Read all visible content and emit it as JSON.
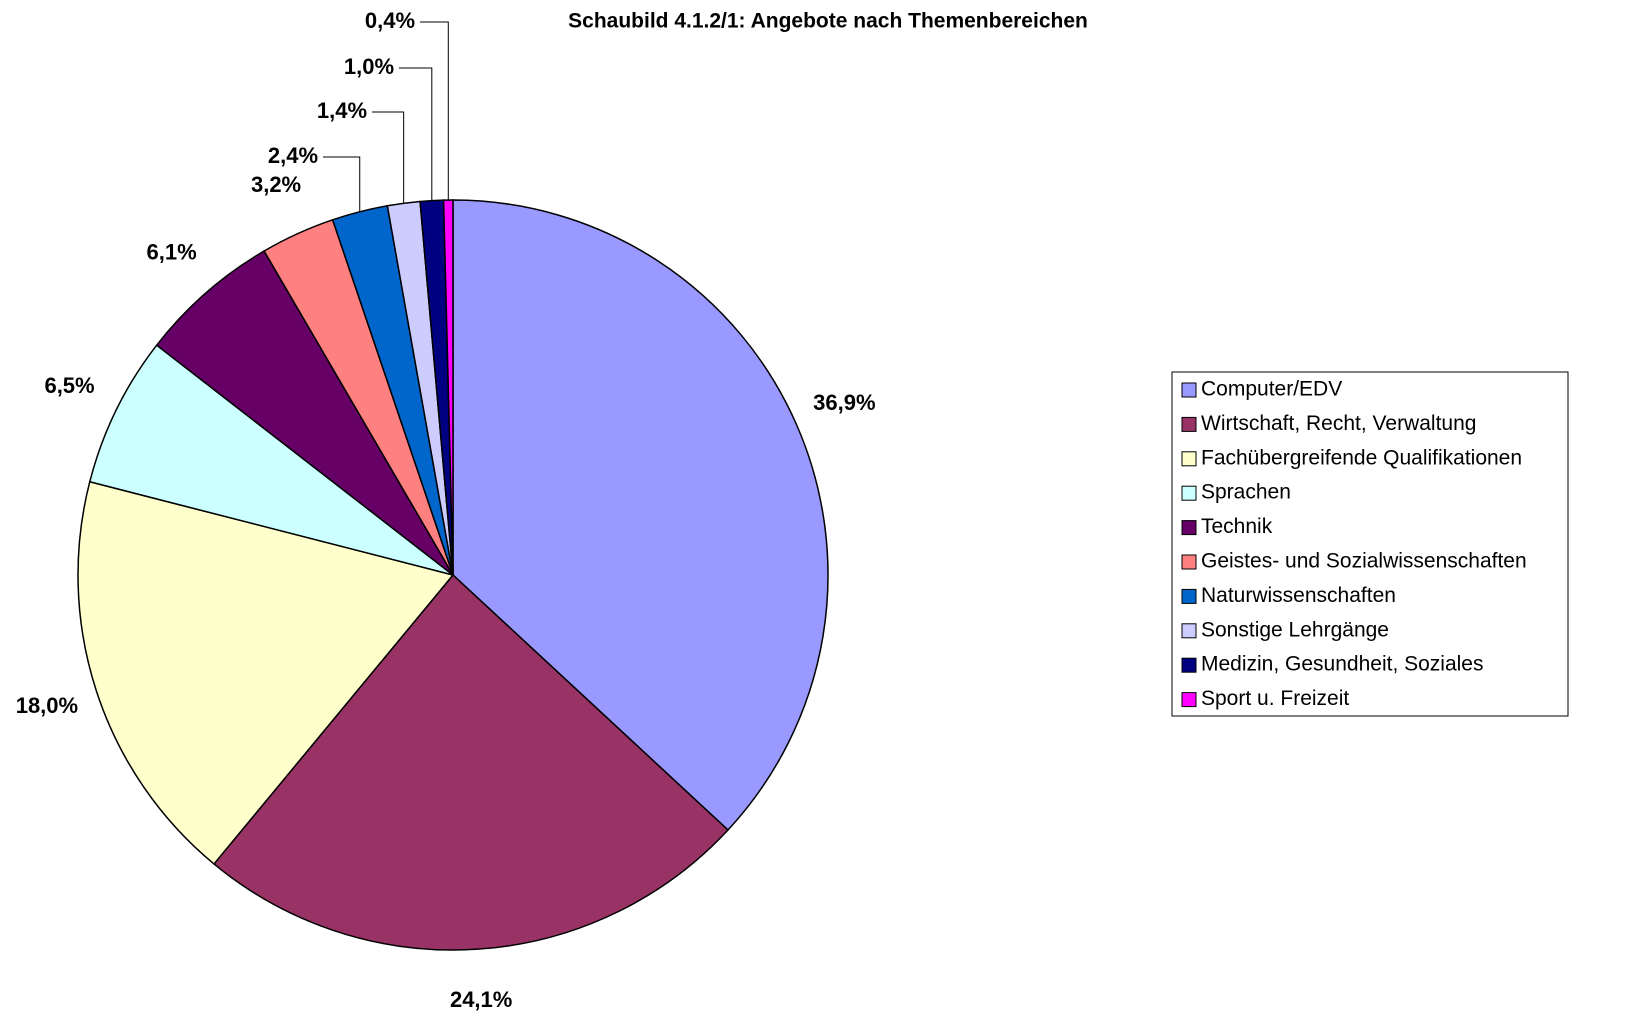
{
  "chart_data": {
    "type": "pie",
    "title": "Schaubild 4.1.2/1: Angebote nach Themenbereichen",
    "categories": [
      "Computer/EDV",
      "Wirtschaft, Recht, Verwaltung",
      "Fachübergreifende Qualifikationen",
      "Sprachen",
      "Technik",
      "Geistes- und Sozialwissenschaften",
      "Naturwissenschaften",
      "Sonstige Lehrgänge",
      "Medizin, Gesundheit, Soziales",
      "Sport u. Freizeit"
    ],
    "values": [
      36.9,
      24.1,
      18.0,
      6.5,
      6.1,
      3.2,
      2.4,
      1.4,
      1.0,
      0.4
    ],
    "value_labels": [
      "36,9%",
      "24,1%",
      "18,0%",
      "6,5%",
      "6,1%",
      "3,2%",
      "2,4%",
      "1,4%",
      "1,0%",
      "0,4%"
    ],
    "colors": [
      "#9999ff",
      "#993366",
      "#ffffcc",
      "#ccffff",
      "#660066",
      "#ff8080",
      "#0066cc",
      "#ccccff",
      "#000080",
      "#ff00ff"
    ],
    "legend": "right"
  }
}
